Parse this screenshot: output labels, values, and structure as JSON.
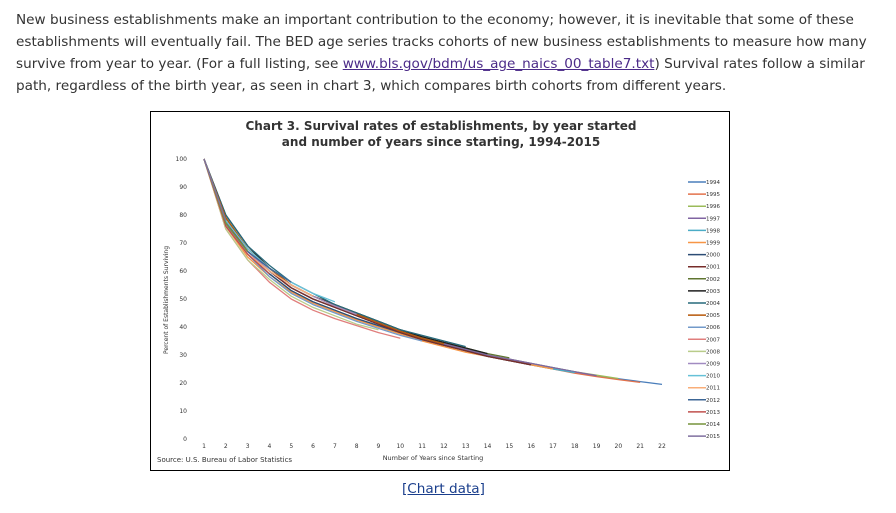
{
  "intro": {
    "text_before_link": "New business establishments make an important contribution to the economy; however, it is inevitable that some of these establishments will eventually fail. The BED age series tracks cohorts of new business establishments to measure how many survive from year to year. (For a full listing, see ",
    "link_text": "www.bls.gov/bdm/us_age_naics_00_table7.txt",
    "text_after_link": ") Survival rates follow a similar path, regardless of the birth year, as seen in chart 3, which compares birth cohorts from different years."
  },
  "chart_link_label": "[Chart data]",
  "chart_data": {
    "type": "line",
    "title_line1": "Chart 3. Survival rates of establishments, by year started",
    "title_line2": "and number of years since starting, 1994-2015",
    "xlabel": "Number of Years since Starting",
    "ylabel": "Percent of Establishments Surviving",
    "source": "Source: U.S. Bureau of Labor Statistics",
    "x_ticks": [
      1,
      2,
      3,
      4,
      5,
      6,
      7,
      8,
      9,
      10,
      11,
      12,
      13,
      14,
      15,
      16,
      17,
      18,
      19,
      20,
      21,
      22
    ],
    "y_ticks": [
      0,
      10,
      20,
      30,
      40,
      50,
      60,
      70,
      80,
      90,
      100
    ],
    "xlim": [
      1,
      22
    ],
    "ylim": [
      0,
      100
    ],
    "legend_position": "right",
    "series": [
      {
        "name": "1994",
        "color": "#4a7ebb",
        "values": [
          100,
          78,
          67,
          60,
          54,
          50,
          47,
          44,
          41,
          38,
          36,
          34,
          32,
          30,
          28.5,
          27,
          25.5,
          24,
          22.5,
          21.5,
          20.5,
          19.5
        ]
      },
      {
        "name": "1995",
        "color": "#e3724b",
        "values": [
          100,
          77,
          66,
          59,
          53,
          49,
          46,
          43,
          40.5,
          38,
          35.5,
          33.5,
          31.5,
          29.5,
          28,
          26.5,
          25,
          23.5,
          22.3,
          21.2,
          20.2
        ]
      },
      {
        "name": "1996",
        "color": "#9bbb59",
        "values": [
          100,
          77.5,
          67,
          60,
          54,
          50,
          47,
          44,
          41,
          38.5,
          36,
          34,
          32,
          30,
          28.5,
          27,
          25.5,
          24,
          22.8,
          21.6
        ]
      },
      {
        "name": "1997",
        "color": "#8064a2",
        "values": [
          100,
          78,
          67,
          60,
          54,
          50,
          47,
          44,
          41,
          38.5,
          36,
          34,
          32,
          30,
          28.5,
          27,
          25.5,
          24,
          22.6
        ]
      },
      {
        "name": "1998",
        "color": "#4bacc6",
        "values": [
          100,
          77,
          66,
          59,
          53,
          49,
          46,
          43,
          40.5,
          38,
          35.5,
          33.5,
          31.5,
          29.5,
          28,
          26.5,
          25,
          23.7
        ]
      },
      {
        "name": "1999",
        "color": "#f79646",
        "values": [
          100,
          76,
          65,
          58,
          52.5,
          48.5,
          45.5,
          42.5,
          40,
          37.5,
          35,
          33,
          31,
          29.5,
          28,
          26.5,
          25
        ]
      },
      {
        "name": "2000",
        "color": "#2c4d75",
        "values": [
          100,
          77,
          66,
          59,
          53,
          49,
          46,
          43,
          40.5,
          38,
          35.5,
          33.5,
          31.5,
          29.5,
          28,
          26.5
        ]
      },
      {
        "name": "2001",
        "color": "#772c2a",
        "values": [
          100,
          78,
          67,
          60,
          54,
          50,
          47,
          44,
          41,
          38,
          35.5,
          33.5,
          31.5,
          29.5,
          28,
          26.5
        ]
      },
      {
        "name": "2002",
        "color": "#5f7530",
        "values": [
          100,
          79,
          68,
          61,
          55,
          51,
          48,
          45,
          42,
          39,
          36.5,
          34.5,
          32.5,
          30.5,
          29
        ]
      },
      {
        "name": "2003",
        "color": "#1f1f1f",
        "values": [
          100,
          80,
          69,
          61,
          55,
          51,
          48,
          45,
          42,
          39,
          36.5,
          34.5,
          32.5,
          30.5
        ]
      },
      {
        "name": "2004",
        "color": "#276a7c",
        "values": [
          100,
          80,
          69,
          62,
          56,
          52,
          48,
          45,
          42,
          39,
          37,
          35,
          33
        ]
      },
      {
        "name": "2005",
        "color": "#b65708",
        "values": [
          100,
          79,
          68,
          61,
          55,
          51,
          47.5,
          44.5,
          41.5,
          38.5,
          36,
          34
        ]
      },
      {
        "name": "2006",
        "color": "#729aca",
        "values": [
          100,
          77,
          66,
          58,
          52,
          48,
          45,
          42,
          39.5,
          37,
          35
        ]
      },
      {
        "name": "2007",
        "color": "#e07e7c",
        "values": [
          100,
          75,
          64,
          56,
          50,
          46,
          43,
          40.5,
          38,
          36
        ]
      },
      {
        "name": "2008",
        "color": "#b9cc8a",
        "values": [
          100,
          75,
          64,
          57,
          51,
          47,
          44,
          41,
          39
        ]
      },
      {
        "name": "2009",
        "color": "#a18bc1",
        "values": [
          100,
          77,
          67,
          60,
          55,
          51,
          47.5,
          44.5
        ]
      },
      {
        "name": "2010",
        "color": "#66c1d8",
        "values": [
          100,
          78,
          68,
          61,
          56,
          52,
          49
        ]
      },
      {
        "name": "2011",
        "color": "#f9ae78",
        "values": [
          100,
          76,
          66,
          60,
          55,
          51
        ]
      },
      {
        "name": "2012",
        "color": "#3c6696",
        "values": [
          100,
          77,
          67,
          61,
          56
        ]
      },
      {
        "name": "2013",
        "color": "#c0504d",
        "values": [
          100,
          76,
          66,
          59
        ]
      },
      {
        "name": "2014",
        "color": "#77933c",
        "values": [
          100,
          77,
          67
        ]
      },
      {
        "name": "2015",
        "color": "#7f6f9f",
        "values": [
          100,
          78
        ]
      }
    ]
  }
}
